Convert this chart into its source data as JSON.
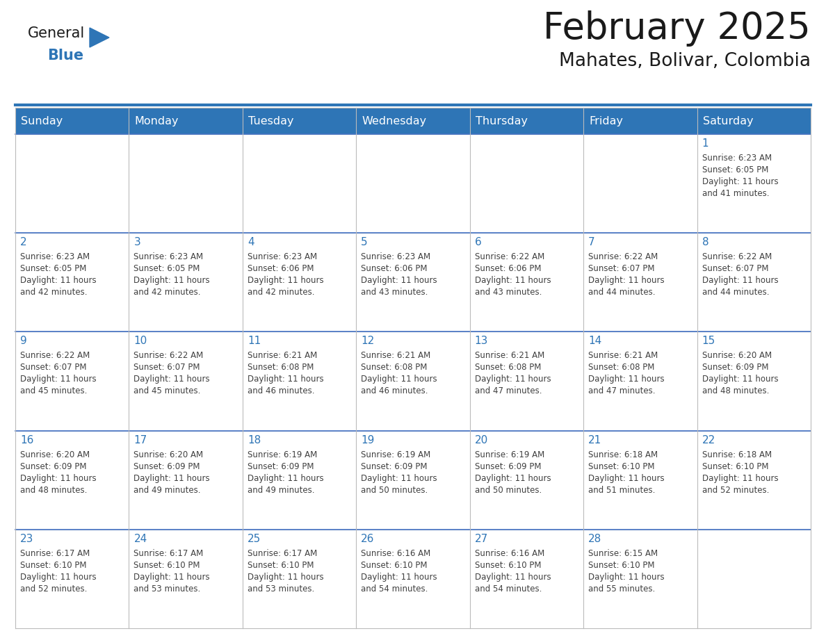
{
  "title": "February 2025",
  "subtitle": "Mahates, Bolivar, Colombia",
  "header_bg": "#2E75B6",
  "header_text": "#FFFFFF",
  "day_names": [
    "Sunday",
    "Monday",
    "Tuesday",
    "Wednesday",
    "Thursday",
    "Friday",
    "Saturday"
  ],
  "cell_bg": "#FFFFFF",
  "row_alt_bg": "#F2F2F2",
  "border_color": "#4472C4",
  "grid_color": "#BBBBBB",
  "day_num_color": "#2E75B6",
  "info_color": "#404040",
  "logo_general_color": "#1a1a1a",
  "logo_blue_color": "#2E75B6",
  "calendar": [
    [
      null,
      null,
      null,
      null,
      null,
      null,
      {
        "day": "1",
        "sunrise": "6:23 AM",
        "sunset": "6:05 PM",
        "daylight_l1": "11 hours",
        "daylight_l2": "and 41 minutes."
      }
    ],
    [
      {
        "day": "2",
        "sunrise": "6:23 AM",
        "sunset": "6:05 PM",
        "daylight_l1": "11 hours",
        "daylight_l2": "and 42 minutes."
      },
      {
        "day": "3",
        "sunrise": "6:23 AM",
        "sunset": "6:05 PM",
        "daylight_l1": "11 hours",
        "daylight_l2": "and 42 minutes."
      },
      {
        "day": "4",
        "sunrise": "6:23 AM",
        "sunset": "6:06 PM",
        "daylight_l1": "11 hours",
        "daylight_l2": "and 42 minutes."
      },
      {
        "day": "5",
        "sunrise": "6:23 AM",
        "sunset": "6:06 PM",
        "daylight_l1": "11 hours",
        "daylight_l2": "and 43 minutes."
      },
      {
        "day": "6",
        "sunrise": "6:22 AM",
        "sunset": "6:06 PM",
        "daylight_l1": "11 hours",
        "daylight_l2": "and 43 minutes."
      },
      {
        "day": "7",
        "sunrise": "6:22 AM",
        "sunset": "6:07 PM",
        "daylight_l1": "11 hours",
        "daylight_l2": "and 44 minutes."
      },
      {
        "day": "8",
        "sunrise": "6:22 AM",
        "sunset": "6:07 PM",
        "daylight_l1": "11 hours",
        "daylight_l2": "and 44 minutes."
      }
    ],
    [
      {
        "day": "9",
        "sunrise": "6:22 AM",
        "sunset": "6:07 PM",
        "daylight_l1": "11 hours",
        "daylight_l2": "and 45 minutes."
      },
      {
        "day": "10",
        "sunrise": "6:22 AM",
        "sunset": "6:07 PM",
        "daylight_l1": "11 hours",
        "daylight_l2": "and 45 minutes."
      },
      {
        "day": "11",
        "sunrise": "6:21 AM",
        "sunset": "6:08 PM",
        "daylight_l1": "11 hours",
        "daylight_l2": "and 46 minutes."
      },
      {
        "day": "12",
        "sunrise": "6:21 AM",
        "sunset": "6:08 PM",
        "daylight_l1": "11 hours",
        "daylight_l2": "and 46 minutes."
      },
      {
        "day": "13",
        "sunrise": "6:21 AM",
        "sunset": "6:08 PM",
        "daylight_l1": "11 hours",
        "daylight_l2": "and 47 minutes."
      },
      {
        "day": "14",
        "sunrise": "6:21 AM",
        "sunset": "6:08 PM",
        "daylight_l1": "11 hours",
        "daylight_l2": "and 47 minutes."
      },
      {
        "day": "15",
        "sunrise": "6:20 AM",
        "sunset": "6:09 PM",
        "daylight_l1": "11 hours",
        "daylight_l2": "and 48 minutes."
      }
    ],
    [
      {
        "day": "16",
        "sunrise": "6:20 AM",
        "sunset": "6:09 PM",
        "daylight_l1": "11 hours",
        "daylight_l2": "and 48 minutes."
      },
      {
        "day": "17",
        "sunrise": "6:20 AM",
        "sunset": "6:09 PM",
        "daylight_l1": "11 hours",
        "daylight_l2": "and 49 minutes."
      },
      {
        "day": "18",
        "sunrise": "6:19 AM",
        "sunset": "6:09 PM",
        "daylight_l1": "11 hours",
        "daylight_l2": "and 49 minutes."
      },
      {
        "day": "19",
        "sunrise": "6:19 AM",
        "sunset": "6:09 PM",
        "daylight_l1": "11 hours",
        "daylight_l2": "and 50 minutes."
      },
      {
        "day": "20",
        "sunrise": "6:19 AM",
        "sunset": "6:09 PM",
        "daylight_l1": "11 hours",
        "daylight_l2": "and 50 minutes."
      },
      {
        "day": "21",
        "sunrise": "6:18 AM",
        "sunset": "6:10 PM",
        "daylight_l1": "11 hours",
        "daylight_l2": "and 51 minutes."
      },
      {
        "day": "22",
        "sunrise": "6:18 AM",
        "sunset": "6:10 PM",
        "daylight_l1": "11 hours",
        "daylight_l2": "and 52 minutes."
      }
    ],
    [
      {
        "day": "23",
        "sunrise": "6:17 AM",
        "sunset": "6:10 PM",
        "daylight_l1": "11 hours",
        "daylight_l2": "and 52 minutes."
      },
      {
        "day": "24",
        "sunrise": "6:17 AM",
        "sunset": "6:10 PM",
        "daylight_l1": "11 hours",
        "daylight_l2": "and 53 minutes."
      },
      {
        "day": "25",
        "sunrise": "6:17 AM",
        "sunset": "6:10 PM",
        "daylight_l1": "11 hours",
        "daylight_l2": "and 53 minutes."
      },
      {
        "day": "26",
        "sunrise": "6:16 AM",
        "sunset": "6:10 PM",
        "daylight_l1": "11 hours",
        "daylight_l2": "and 54 minutes."
      },
      {
        "day": "27",
        "sunrise": "6:16 AM",
        "sunset": "6:10 PM",
        "daylight_l1": "11 hours",
        "daylight_l2": "and 54 minutes."
      },
      {
        "day": "28",
        "sunrise": "6:15 AM",
        "sunset": "6:10 PM",
        "daylight_l1": "11 hours",
        "daylight_l2": "and 55 minutes."
      },
      null
    ]
  ]
}
